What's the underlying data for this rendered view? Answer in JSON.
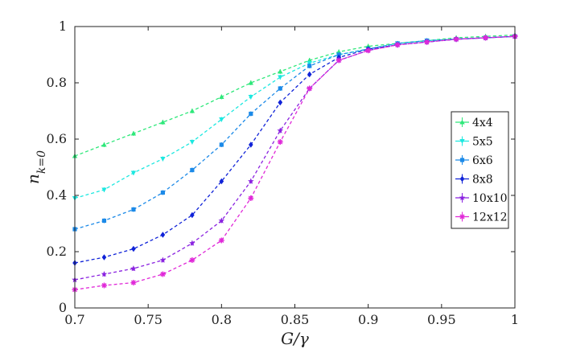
{
  "chart_data": {
    "type": "line",
    "xlabel": "G/γ",
    "ylabel": "n_{k=0}",
    "xlim": [
      0.7,
      1.0
    ],
    "ylim": [
      0,
      1
    ],
    "xticks": [
      "0.7",
      "0.75",
      "0.8",
      "0.85",
      "0.9",
      "0.95",
      "1"
    ],
    "yticks": [
      "0",
      "0.2",
      "0.4",
      "0.6",
      "0.8",
      "1"
    ],
    "legend_position": "right",
    "x": [
      0.7,
      0.72,
      0.74,
      0.76,
      0.78,
      0.8,
      0.82,
      0.84,
      0.86,
      0.88,
      0.9,
      0.92,
      0.94,
      0.96,
      0.98,
      1.0
    ],
    "series": [
      {
        "name": "4x4",
        "color": "#2ee87a",
        "marker": "triangle-up",
        "values": [
          0.54,
          0.58,
          0.62,
          0.66,
          0.7,
          0.75,
          0.8,
          0.84,
          0.88,
          0.91,
          0.93,
          0.94,
          0.95,
          0.96,
          0.965,
          0.97
        ]
      },
      {
        "name": "5x5",
        "color": "#1de8e0",
        "marker": "triangle-down",
        "values": [
          0.39,
          0.42,
          0.48,
          0.53,
          0.59,
          0.67,
          0.75,
          0.82,
          0.87,
          0.9,
          0.92,
          0.94,
          0.95,
          0.955,
          0.96,
          0.965
        ]
      },
      {
        "name": "6x6",
        "color": "#1c8ae8",
        "marker": "square",
        "values": [
          0.28,
          0.31,
          0.35,
          0.41,
          0.49,
          0.58,
          0.69,
          0.78,
          0.86,
          0.9,
          0.92,
          0.94,
          0.95,
          0.955,
          0.96,
          0.965
        ]
      },
      {
        "name": "8x8",
        "color": "#1023d8",
        "marker": "diamond",
        "values": [
          0.16,
          0.18,
          0.21,
          0.26,
          0.33,
          0.45,
          0.58,
          0.73,
          0.83,
          0.89,
          0.92,
          0.935,
          0.945,
          0.955,
          0.96,
          0.965
        ]
      },
      {
        "name": "10x10",
        "color": "#8a22e0",
        "marker": "star",
        "values": [
          0.1,
          0.12,
          0.14,
          0.17,
          0.23,
          0.31,
          0.45,
          0.63,
          0.78,
          0.88,
          0.915,
          0.935,
          0.945,
          0.955,
          0.96,
          0.965
        ]
      },
      {
        "name": "12x12",
        "color": "#e028d8",
        "marker": "asterisk",
        "values": [
          0.065,
          0.08,
          0.09,
          0.12,
          0.17,
          0.24,
          0.39,
          0.59,
          0.78,
          0.88,
          0.915,
          0.935,
          0.945,
          0.955,
          0.96,
          0.965
        ]
      }
    ]
  }
}
